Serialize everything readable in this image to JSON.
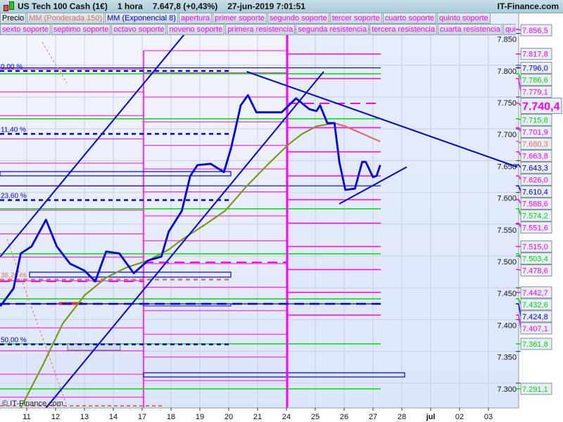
{
  "header": {
    "instrument": "US Tech 100 Cash (1€)",
    "timeframe": "1 hora",
    "last_price": "7.647,8 (+0,43%)",
    "datetime": "27-jun-2019 7:01:51",
    "brand": "IT-Finance.com"
  },
  "legend": {
    "row1": [
      {
        "label": "Precio",
        "color": "#000000"
      },
      {
        "label": "MM (Ponderada 150)",
        "color": "#e07060"
      },
      {
        "label": "MM (Exponencial 8)",
        "color": "#0000ee"
      },
      {
        "label": "apertura",
        "color": "#ff00ff"
      },
      {
        "label": "primer soporte",
        "color": "#ff00ff"
      },
      {
        "label": "segundo soporte",
        "color": "#ff00ff"
      },
      {
        "label": "tercer soporte",
        "color": "#ff00ff"
      },
      {
        "label": "cuarto soporte",
        "color": "#ff00ff"
      },
      {
        "label": "quinto soporte",
        "color": "#ff00ff"
      }
    ],
    "row2": [
      {
        "label": "sexto soporte",
        "color": "#ff00ff"
      },
      {
        "label": "septimo soporte",
        "color": "#ff00ff"
      },
      {
        "label": "octavo soporte",
        "color": "#ff00ff"
      },
      {
        "label": "noveno soporte",
        "color": "#ff00ff"
      },
      {
        "label": "primera resistencia",
        "color": "#ff00ff"
      },
      {
        "label": "segunda resistencia",
        "color": "#ff00ff"
      },
      {
        "label": "tercera resistencia",
        "color": "#ff00ff"
      },
      {
        "label": "cuarta resistencia",
        "color": "#ff00ff"
      },
      {
        "label": "quinta",
        "color": "#ff00ff"
      }
    ]
  },
  "watermark": "© IT-Finance.com",
  "chart_data": {
    "type": "line",
    "x_ticks": [
      {
        "date": "06-11",
        "label": "11"
      },
      {
        "date": "06-12",
        "label": "12"
      },
      {
        "date": "06-13",
        "label": "13"
      },
      {
        "date": "06-14",
        "label": "14"
      },
      {
        "date": "06-17",
        "label": "17"
      },
      {
        "date": "06-18",
        "label": "18"
      },
      {
        "date": "06-19",
        "label": "19"
      },
      {
        "date": "06-20",
        "label": "20"
      },
      {
        "date": "06-21",
        "label": "21"
      },
      {
        "date": "06-24",
        "label": "24"
      },
      {
        "date": "06-25",
        "label": "25"
      },
      {
        "date": "06-26",
        "label": "26"
      },
      {
        "date": "06-27",
        "label": "27"
      },
      {
        "date": "06-28",
        "label": "28"
      },
      {
        "date": "07-01",
        "label": "jul",
        "bold": true
      },
      {
        "date": "07-02",
        "label": "02"
      },
      {
        "date": "07-03",
        "label": "03"
      }
    ],
    "y_ticks": [
      "7.850",
      "7.800",
      "7.750",
      "7.700",
      "7.650",
      "7.600",
      "7.550",
      "7.500",
      "7.450",
      "7.400",
      "7.350",
      "7.300"
    ],
    "y_tick_values": [
      7850,
      7800,
      7750,
      7700,
      7650,
      7600,
      7550,
      7500,
      7450,
      7400,
      7350,
      7300
    ],
    "grid": true,
    "series": [
      {
        "name": "MM (Exponencial 8)",
        "color": "#0000ee",
        "points": [
          [
            "06-10 02:00",
            7421
          ],
          [
            "06-10 13:00",
            7449
          ],
          [
            "06-10 19:00",
            7504
          ],
          [
            "06-11 04:00",
            7515
          ],
          [
            "06-11 16:00",
            7557
          ],
          [
            "06-12 01:00",
            7515
          ],
          [
            "06-12 12:00",
            7488
          ],
          [
            "06-13 00:00",
            7477
          ],
          [
            "06-13 09:00",
            7460
          ],
          [
            "06-13 18:00",
            7507
          ],
          [
            "06-14 05:00",
            7504
          ],
          [
            "06-14 17:00",
            7473
          ],
          [
            "06-17 05:00",
            7493
          ],
          [
            "06-17 16:00",
            7499
          ],
          [
            "06-17 22:00",
            7538
          ],
          [
            "06-18 09:00",
            7571
          ],
          [
            "06-18 16:00",
            7626
          ],
          [
            "06-18 22:00",
            7643
          ],
          [
            "06-19 09:00",
            7645
          ],
          [
            "06-19 20:00",
            7632
          ],
          [
            "06-20 02:00",
            7670
          ],
          [
            "06-20 10:00",
            7737
          ],
          [
            "06-20 16:00",
            7753
          ],
          [
            "06-20 23:00",
            7726
          ],
          [
            "06-21 08:00",
            7726
          ],
          [
            "06-21 20:00",
            7726
          ],
          [
            "06-24 08:00",
            7748
          ],
          [
            "06-24 19:00",
            7731
          ],
          [
            "06-25 01:00",
            7728
          ],
          [
            "06-25 04:00",
            7737
          ],
          [
            "06-25 10:00",
            7709
          ],
          [
            "06-25 16:00",
            7709
          ],
          [
            "06-25 20:00",
            7648
          ],
          [
            "06-26 01:00",
            7604
          ],
          [
            "06-26 09:00",
            7606
          ],
          [
            "06-26 15:00",
            7648
          ],
          [
            "06-26 18:00",
            7648
          ],
          [
            "06-27 00:00",
            7624
          ],
          [
            "06-27 03:00",
            7626
          ],
          [
            "06-27 06:00",
            7643
          ]
        ]
      },
      {
        "name": "MM (Ponderada 150)",
        "color": "#e07060",
        "early_color": "#7a9a10",
        "points": [
          [
            "06-10 19:00",
            7261
          ],
          [
            "06-11 13:00",
            7327
          ],
          [
            "06-12 06:00",
            7394
          ],
          [
            "06-13 00:00",
            7438
          ],
          [
            "06-13 18:00",
            7466
          ],
          [
            "06-14 11:00",
            7482
          ],
          [
            "06-17 05:00",
            7493
          ],
          [
            "06-17 22:00",
            7510
          ],
          [
            "06-18 10:00",
            7527
          ],
          [
            "06-19 04:00",
            7549
          ],
          [
            "06-19 21:00",
            7571
          ],
          [
            "06-20 15:00",
            7610
          ],
          [
            "06-21 08:00",
            7643
          ],
          [
            "06-24 02:00",
            7676
          ],
          [
            "06-24 13:00",
            7692
          ],
          [
            "06-25 01:00",
            7704
          ],
          [
            "06-25 16:00",
            7709
          ],
          [
            "06-26 01:00",
            7704
          ],
          [
            "06-26 12:00",
            7695
          ],
          [
            "06-27 06:00",
            7680
          ]
        ]
      }
    ],
    "trendlines": [
      {
        "from": [
          "06-10 02:00",
          7499
        ],
        "to": [
          "06-18 13:00",
          7853
        ],
        "color": "#0000ee"
      },
      {
        "from": [
          "06-11 16:00",
          7261
        ],
        "to": [
          "06-25 07:00",
          7790
        ],
        "color": "#0000ee"
      },
      {
        "from": [
          "06-20 15:00",
          7790
        ],
        "to": [
          "07-04 00:00",
          7640
        ],
        "color": "#0000ee"
      },
      {
        "from": [
          "06-25 20:00",
          7582
        ],
        "to": [
          "06-28 04:00",
          7640
        ],
        "color": "#0000ee"
      }
    ],
    "fibonacci": [
      {
        "label": "0,00 %",
        "price": 7791,
        "color": "#0000ee"
      },
      {
        "label": "11,40 %",
        "price": 7692,
        "color": "#0000ee"
      },
      {
        "label": "23,60 %",
        "price": 7588,
        "color": "#0000ee"
      },
      {
        "label": "38,20 %",
        "price": 7463,
        "color": "#e07060"
      },
      {
        "label": "50,00 %",
        "price": 7361,
        "color": "#0000ee"
      }
    ],
    "pivot_levels_week_10": [
      7794,
      7758,
      7721,
      7684,
      7646,
      7610,
      7572,
      7535,
      7498,
      7461,
      7425,
      7387,
      7351,
      7314,
      7278
    ],
    "pivot_levels_week_17": [
      7823,
      7788,
      7750,
      7711,
      7674,
      7637,
      7601,
      7563,
      7524,
      7488,
      7451,
      7414,
      7377,
      7341,
      7304
    ],
    "price_labels": [
      {
        "text": "7.856,5",
        "price": 7856.5,
        "color": "#ff00ff"
      },
      {
        "text": "7.817,8",
        "price": 7817.8,
        "color": "#ff00ff"
      },
      {
        "text": "7.796,0",
        "price": 7796.0,
        "color": "#0000ee"
      },
      {
        "text": "7.786,6",
        "price": 7786.6,
        "color": "#00dd00"
      },
      {
        "text": "7.779,1",
        "price": 7779.1,
        "color": "#ff00ff"
      },
      {
        "text": "7.740,4",
        "price": 7740.4,
        "color": "#ff00ff",
        "current": true
      },
      {
        "text": "7.715,8",
        "price": 7715.8,
        "color": "#00dd00"
      },
      {
        "text": "7.701,9",
        "price": 7701.9,
        "color": "#ff00ff"
      },
      {
        "text": "7.680,3",
        "price": 7680.3,
        "color": "#e07060"
      },
      {
        "text": "7.663,8",
        "price": 7663.8,
        "color": "#ff00ff"
      },
      {
        "text": "7.643,3",
        "price": 7643.3,
        "color": "#0000ee"
      },
      {
        "text": "7.626,0",
        "price": 7626.0,
        "color": "#ff00ff"
      },
      {
        "text": "7.610,4",
        "price": 7610.4,
        "color": "#0000ee"
      },
      {
        "text": "7.588,6",
        "price": 7588.6,
        "color": "#ff00ff"
      },
      {
        "text": "7.574,2",
        "price": 7574.2,
        "color": "#00dd00"
      },
      {
        "text": "7.551,6",
        "price": 7551.6,
        "color": "#ff00ff"
      },
      {
        "text": "7.515,0",
        "price": 7515.0,
        "color": "#ff00ff"
      },
      {
        "text": "7.503,4",
        "price": 7503.4,
        "color": "#00dd00"
      },
      {
        "text": "7.478,6",
        "price": 7478.6,
        "color": "#ff00ff"
      },
      {
        "text": "7.442,7",
        "price": 7442.7,
        "color": "#ff00ff"
      },
      {
        "text": "7.432,6",
        "price": 7432.6,
        "color": "#00dd00"
      },
      {
        "text": "7.424,8",
        "price": 7424.8,
        "color": "#0000ee"
      },
      {
        "text": "7.407,1",
        "price": 7407.1,
        "color": "#ff00ff"
      },
      {
        "text": "7.361,8",
        "price": 7361.8,
        "color": "#00dd00"
      },
      {
        "text": "7.291,1",
        "price": 7291.1,
        "color": "#00dd00"
      }
    ]
  }
}
